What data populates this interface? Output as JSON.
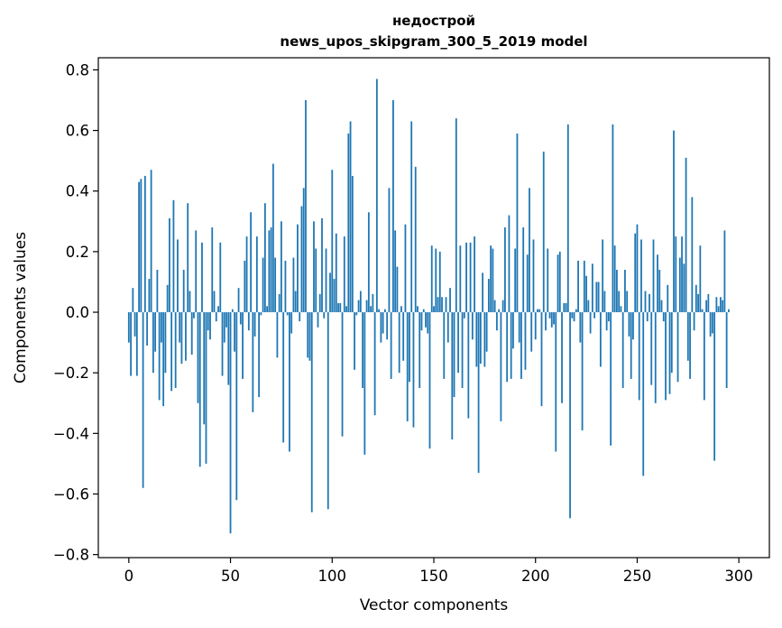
{
  "chart_data": {
    "type": "bar",
    "title_line1": "недострой",
    "title_line2": "news_upos_skipgram_300_5_2019 model",
    "xlabel": "Vector components",
    "ylabel": "Components values",
    "xlim": [
      -15,
      315
    ],
    "ylim": [
      -0.81,
      0.84
    ],
    "xticks": [
      0,
      50,
      100,
      150,
      200,
      250,
      300
    ],
    "yticks": [
      -0.8,
      -0.6,
      -0.4,
      -0.2,
      0.0,
      0.2,
      0.4,
      0.6,
      0.8
    ],
    "ytick_labels": [
      "−0.8",
      "−0.6",
      "−0.4",
      "−0.2",
      "0.0",
      "0.2",
      "0.4",
      "0.6",
      "0.8"
    ],
    "bar_color": "#1f77b4",
    "values": [
      -0.1,
      -0.21,
      0.08,
      -0.08,
      -0.21,
      0.43,
      0.44,
      -0.58,
      0.45,
      -0.11,
      0.11,
      0.47,
      -0.2,
      -0.13,
      0.14,
      -0.29,
      -0.1,
      -0.31,
      -0.2,
      0.09,
      0.31,
      -0.26,
      0.37,
      -0.25,
      0.24,
      -0.1,
      -0.17,
      0.14,
      -0.16,
      0.36,
      0.07,
      -0.14,
      -0.02,
      0.27,
      -0.3,
      -0.51,
      0.23,
      -0.37,
      -0.5,
      -0.06,
      -0.09,
      0.28,
      0.07,
      -0.03,
      0.02,
      0.23,
      -0.21,
      -0.1,
      -0.05,
      -0.24,
      -0.73,
      0.01,
      -0.13,
      -0.62,
      0.08,
      -0.04,
      -0.22,
      0.17,
      0.25,
      -0.06,
      0.33,
      -0.33,
      -0.08,
      0.25,
      -0.28,
      -0.01,
      0.18,
      0.36,
      0.02,
      0.27,
      0.28,
      0.49,
      0.18,
      -0.15,
      0.06,
      0.3,
      -0.43,
      0.17,
      -0.01,
      -0.46,
      -0.07,
      0.18,
      0.07,
      0.29,
      -0.03,
      0.35,
      0.41,
      0.7,
      -0.15,
      -0.16,
      -0.66,
      0.3,
      0.21,
      -0.05,
      0.06,
      0.31,
      -0.02,
      0.21,
      -0.65,
      0.13,
      0.47,
      0.11,
      0.26,
      0.03,
      0.03,
      -0.41,
      0.25,
      0.02,
      0.59,
      0.63,
      0.45,
      -0.19,
      -0.01,
      0.04,
      0.07,
      -0.25,
      -0.47,
      0.04,
      0.33,
      0.02,
      0.06,
      -0.34,
      0.77,
      0.01,
      -0.1,
      -0.07,
      0.01,
      -0.09,
      0.41,
      -0.22,
      0.7,
      0.27,
      0.15,
      -0.2,
      0.02,
      -0.16,
      0.29,
      -0.36,
      -0.23,
      0.63,
      -0.38,
      0.48,
      0.02,
      -0.25,
      -0.06,
      0.01,
      -0.05,
      -0.07,
      -0.45,
      0.22,
      0.02,
      0.21,
      0.05,
      0.2,
      0.05,
      -0.22,
      0.05,
      -0.1,
      0.08,
      -0.42,
      -0.28,
      0.64,
      -0.2,
      0.22,
      -0.25,
      -0.02,
      0.23,
      -0.35,
      0.23,
      -0.09,
      0.25,
      -0.18,
      -0.53,
      -0.17,
      0.13,
      -0.18,
      -0.13,
      0.11,
      0.22,
      0.21,
      0.04,
      -0.06,
      0.01,
      -0.36,
      0.04,
      0.28,
      -0.23,
      0.32,
      -0.22,
      -0.12,
      0.21,
      0.59,
      -0.1,
      -0.22,
      0.28,
      -0.19,
      0.19,
      0.41,
      -0.13,
      0.24,
      -0.09,
      0.01,
      0.01,
      -0.31,
      0.53,
      -0.06,
      0.21,
      -0.02,
      -0.05,
      -0.04,
      -0.46,
      0.19,
      0.2,
      -0.3,
      0.03,
      0.03,
      0.62,
      -0.68,
      -0.02,
      -0.03,
      0.01,
      0.17,
      -0.1,
      -0.39,
      0.17,
      0.12,
      0.04,
      -0.07,
      0.16,
      -0.02,
      0.1,
      0.1,
      -0.18,
      0.24,
      0.07,
      -0.06,
      -0.03,
      -0.44,
      0.62,
      0.22,
      0.14,
      0.07,
      0.02,
      -0.25,
      0.14,
      0.07,
      -0.08,
      -0.22,
      -0.09,
      0.26,
      0.29,
      -0.29,
      0.24,
      -0.54,
      0.07,
      -0.03,
      0.06,
      -0.24,
      0.24,
      -0.3,
      0.19,
      0.14,
      0.04,
      -0.03,
      -0.29,
      0.09,
      -0.27,
      -0.2,
      0.6,
      0.25,
      -0.23,
      0.18,
      0.25,
      0.16,
      0.51,
      -0.16,
      -0.22,
      0.38,
      -0.06,
      0.09,
      0.06,
      0.22,
      0.01,
      -0.29,
      0.04,
      0.06,
      -0.08,
      -0.07,
      -0.49,
      0.05,
      0.02,
      0.05,
      0.04,
      0.27,
      -0.25,
      0.01
    ]
  }
}
